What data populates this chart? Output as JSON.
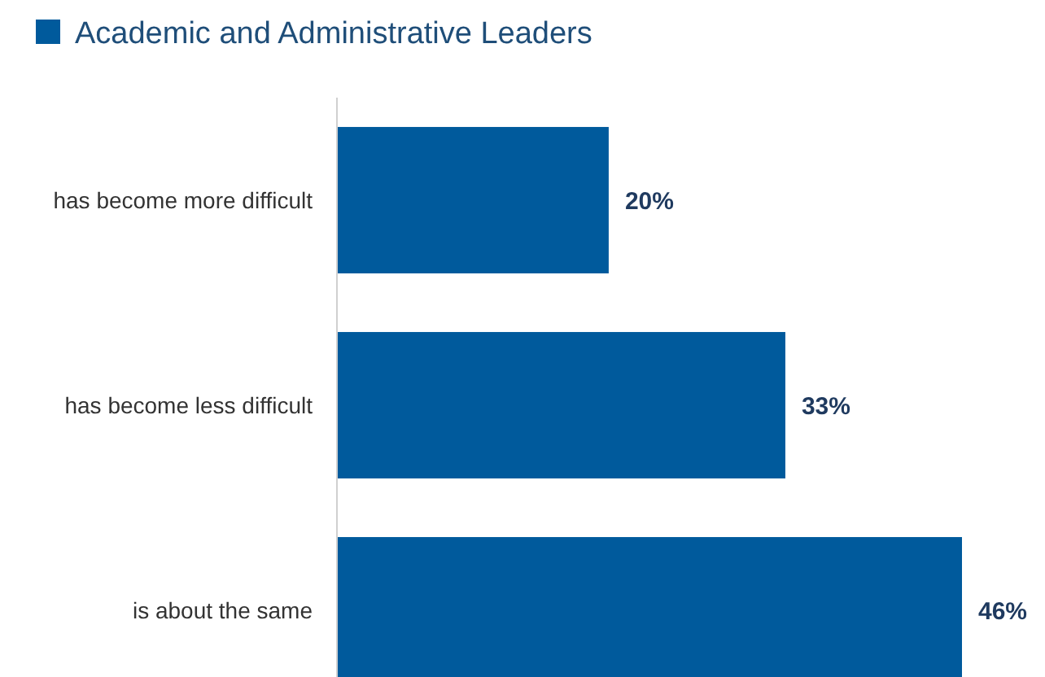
{
  "chart_data": {
    "type": "bar",
    "orientation": "horizontal",
    "categories": [
      "has become more difficult",
      "has become less difficult",
      "is about the same"
    ],
    "series": [
      {
        "name": "Academic and Administrative Leaders",
        "color": "#005a9c",
        "values": [
          20,
          33,
          46
        ],
        "value_labels": [
          "20%",
          "33%",
          "46%"
        ]
      }
    ],
    "legend": "top left"
  }
}
